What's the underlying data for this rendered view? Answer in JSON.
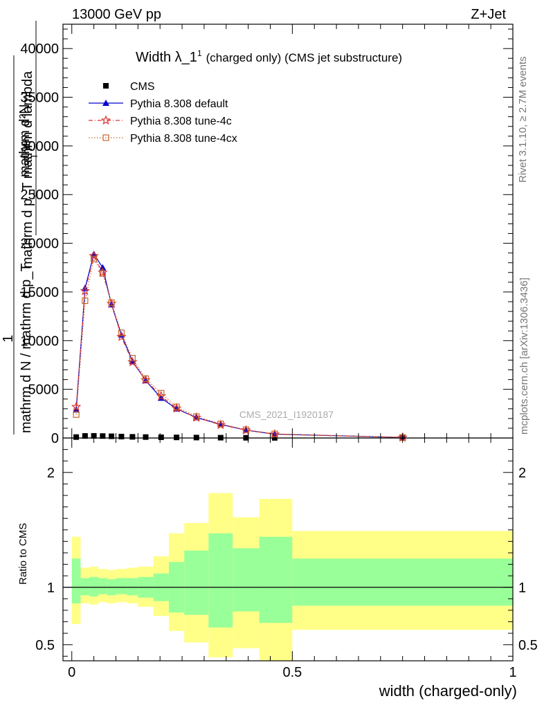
{
  "header": {
    "left": "13000 GeV pp",
    "right": "Z+Jet"
  },
  "side_texts": {
    "rivet": "Rivet 3.1.10, ≥ 2.7M events",
    "mcplots": "mcplots.cern.ch [arXiv:1306.3436]"
  },
  "chart_data": [
    {
      "type": "line",
      "title_main": "Width λ_1",
      "title_sup": "1",
      "title_rest": "(charged only) (CMS jet substructure)",
      "watermark": "CMS_2021_I1920187",
      "ylabel_numerator_top": "mathrm d²N",
      "ylabel_numerator_bottom": "mathrm d p_T mathrm d lambda",
      "ylabel_sub": "T",
      "ylabel_denominator": "mathrm d N / mathrm d p_T",
      "ylabel_one": "1",
      "xlabel": "width (charged-only)",
      "xlim": [
        -0.02,
        1.0
      ],
      "ylim": [
        0,
        42500
      ],
      "x_ticks": [
        0,
        0.5,
        1
      ],
      "x_tick_labels": [
        "0",
        "0.5",
        "1"
      ],
      "y_ticks": [
        0,
        5000,
        10000,
        15000,
        20000,
        25000,
        30000,
        35000,
        40000
      ],
      "y_tick_labels": [
        "0",
        "5000",
        "10000",
        "15000",
        "20000",
        "25000",
        "30000",
        "35000",
        "40000"
      ],
      "grid": false,
      "legend_position": "top-left",
      "series": [
        {
          "name": "CMS",
          "color": "#000000",
          "marker": "square",
          "x": [
            0.01,
            0.03,
            0.05,
            0.07,
            0.09,
            0.1125,
            0.1375,
            0.1675,
            0.2025,
            0.2375,
            0.2825,
            0.3375,
            0.395,
            0.46,
            0.75
          ],
          "y": [
            95,
            210,
            220,
            200,
            175,
            145,
            118,
            95,
            75,
            60,
            45,
            32,
            22,
            13,
            2
          ]
        },
        {
          "name": "Pythia 8.308 default",
          "color": "#0000cc",
          "marker": "triangle",
          "x": [
            0.01,
            0.03,
            0.05,
            0.07,
            0.09,
            0.1125,
            0.1375,
            0.1675,
            0.2025,
            0.2375,
            0.2825,
            0.3375,
            0.395,
            0.46,
            0.75
          ],
          "y": [
            2900,
            15400,
            18900,
            17500,
            13700,
            10600,
            7900,
            5900,
            4100,
            3000,
            2100,
            1400,
            800,
            400,
            60
          ]
        },
        {
          "name": "Pythia 8.308 tune-4c",
          "color": "#dd3333",
          "marker": "star",
          "x": [
            0.01,
            0.03,
            0.05,
            0.07,
            0.09,
            0.1125,
            0.1375,
            0.1675,
            0.2025,
            0.2375,
            0.2825,
            0.3375,
            0.395,
            0.46,
            0.75
          ],
          "y": [
            3200,
            15100,
            18700,
            17000,
            13800,
            10400,
            7800,
            5950,
            4300,
            3050,
            2100,
            1350,
            800,
            380,
            55
          ]
        },
        {
          "name": "Pythia 8.308 tune-4cx",
          "color": "#c8642a",
          "marker": "open-square",
          "x": [
            0.01,
            0.03,
            0.05,
            0.07,
            0.09,
            0.1125,
            0.1375,
            0.1675,
            0.2025,
            0.2375,
            0.2825,
            0.3375,
            0.395,
            0.46,
            0.75
          ],
          "y": [
            2400,
            14100,
            18400,
            16900,
            13900,
            10800,
            8200,
            6100,
            4600,
            3200,
            2200,
            1450,
            850,
            420,
            65
          ]
        }
      ]
    },
    {
      "type": "area",
      "ylabel": "Ratio to CMS",
      "xlim": [
        -0.02,
        1.0
      ],
      "ylim": [
        0.36,
        2.3
      ],
      "y_ticks": [
        0.5,
        1,
        2
      ],
      "y_tick_labels": [
        "0.5",
        "1",
        "2"
      ],
      "reference_line": 1,
      "bands": {
        "bin_edges": [
          0,
          0.02,
          0.04,
          0.06,
          0.08,
          0.1,
          0.125,
          0.15,
          0.185,
          0.22,
          0.255,
          0.31,
          0.365,
          0.425,
          0.5,
          1.0
        ],
        "inner_upper": [
          1.25,
          1.08,
          1.09,
          1.08,
          1.07,
          1.08,
          1.08,
          1.09,
          1.12,
          1.22,
          1.32,
          1.47,
          1.34,
          1.44,
          1.25
        ],
        "inner_lower": [
          0.86,
          0.93,
          0.92,
          0.94,
          0.93,
          0.94,
          0.93,
          0.91,
          0.88,
          0.78,
          0.76,
          0.65,
          0.79,
          0.69,
          0.84
        ],
        "outer_upper": [
          1.44,
          1.17,
          1.18,
          1.16,
          1.15,
          1.16,
          1.17,
          1.18,
          1.27,
          1.47,
          1.56,
          1.82,
          1.61,
          1.77,
          1.49
        ],
        "outer_lower": [
          0.68,
          0.86,
          0.85,
          0.87,
          0.86,
          0.87,
          0.86,
          0.83,
          0.75,
          0.62,
          0.52,
          0.39,
          0.47,
          0.36,
          0.63
        ],
        "inner_color": "#99ff99",
        "outer_color": "#ffff88"
      }
    }
  ]
}
